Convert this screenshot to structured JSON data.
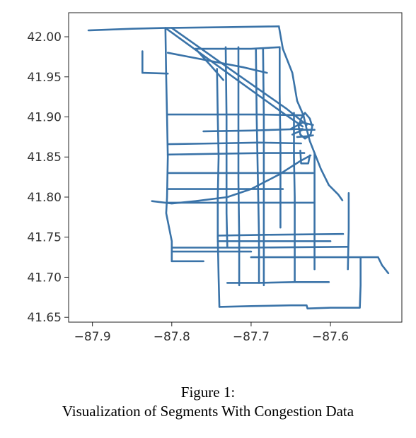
{
  "figure": {
    "caption_line1": "Figure 1:",
    "caption_line2": "Visualization of Segments With Congestion Data"
  },
  "chart_data": {
    "type": "line",
    "title": "",
    "xlabel": "",
    "ylabel": "",
    "xlim": [
      -87.93,
      -87.51
    ],
    "ylim": [
      41.644,
      42.03
    ],
    "xticks": [
      -87.9,
      -87.8,
      -87.7,
      -87.6
    ],
    "xtick_labels": [
      "−87.9",
      "−87.8",
      "−87.7",
      "−87.6"
    ],
    "yticks": [
      41.65,
      41.7,
      41.75,
      41.8,
      41.85,
      41.9,
      41.95,
      42.0
    ],
    "ytick_labels": [
      "41.65",
      "41.70",
      "41.75",
      "41.80",
      "41.85",
      "41.90",
      "41.95",
      "42.00"
    ],
    "grid": false,
    "line_color": "#3a73a8",
    "segments": [
      [
        [
          -87.905,
          42.008
        ],
        [
          -87.85,
          42.01
        ],
        [
          -87.81,
          42.011
        ],
        [
          -87.73,
          42.012
        ],
        [
          -87.665,
          42.013
        ]
      ],
      [
        [
          -87.665,
          42.013
        ],
        [
          -87.66,
          41.985
        ],
        [
          -87.648,
          41.955
        ],
        [
          -87.642,
          41.92
        ],
        [
          -87.634,
          41.902
        ]
      ],
      [
        [
          -87.634,
          41.902
        ],
        [
          -87.63,
          41.885
        ],
        [
          -87.626,
          41.87
        ],
        [
          -87.62,
          41.855
        ],
        [
          -87.612,
          41.835
        ],
        [
          -87.602,
          41.815
        ],
        [
          -87.59,
          41.803
        ],
        [
          -87.585,
          41.796
        ]
      ],
      [
        [
          -87.837,
          41.982
        ],
        [
          -87.837,
          41.955
        ],
        [
          -87.805,
          41.954
        ]
      ],
      [
        [
          -87.808,
          42.011
        ],
        [
          -87.807,
          41.95
        ],
        [
          -87.806,
          41.9
        ],
        [
          -87.805,
          41.85
        ],
        [
          -87.806,
          41.8
        ],
        [
          -87.807,
          41.78
        ],
        [
          -87.804,
          41.765
        ],
        [
          -87.8,
          41.745
        ],
        [
          -87.8,
          41.72
        ]
      ],
      [
        [
          -87.8,
          41.72
        ],
        [
          -87.78,
          41.72
        ],
        [
          -87.76,
          41.72
        ]
      ],
      [
        [
          -87.808,
          42.011
        ],
        [
          -87.73,
          41.955
        ],
        [
          -87.66,
          41.905
        ],
        [
          -87.635,
          41.888
        ]
      ],
      [
        [
          -87.8,
          42.011
        ],
        [
          -87.72,
          41.955
        ],
        [
          -87.655,
          41.91
        ],
        [
          -87.63,
          41.89
        ]
      ],
      [
        [
          -87.805,
          41.98
        ],
        [
          -87.71,
          41.962
        ],
        [
          -87.68,
          41.955
        ]
      ],
      [
        [
          -87.77,
          41.985
        ],
        [
          -87.75,
          41.963
        ],
        [
          -87.735,
          41.946
        ]
      ],
      [
        [
          -87.77,
          41.985
        ],
        [
          -87.7,
          41.985
        ],
        [
          -87.664,
          41.987
        ]
      ],
      [
        [
          -87.805,
          41.903
        ],
        [
          -87.745,
          41.903
        ],
        [
          -87.69,
          41.903
        ],
        [
          -87.634,
          41.902
        ]
      ],
      [
        [
          -87.76,
          41.882
        ],
        [
          -87.7,
          41.883
        ],
        [
          -87.635,
          41.885
        ]
      ],
      [
        [
          -87.805,
          41.866
        ],
        [
          -87.745,
          41.867
        ],
        [
          -87.69,
          41.868
        ],
        [
          -87.637,
          41.867
        ]
      ],
      [
        [
          -87.805,
          41.853
        ],
        [
          -87.745,
          41.854
        ],
        [
          -87.68,
          41.855
        ],
        [
          -87.633,
          41.855
        ]
      ],
      [
        [
          -87.805,
          41.83
        ],
        [
          -87.7,
          41.83
        ],
        [
          -87.622,
          41.83
        ]
      ],
      [
        [
          -87.743,
          41.96
        ],
        [
          -87.742,
          41.9
        ],
        [
          -87.741,
          41.85
        ],
        [
          -87.742,
          41.8
        ],
        [
          -87.742,
          41.75
        ],
        [
          -87.741,
          41.7
        ],
        [
          -87.74,
          41.663
        ]
      ],
      [
        [
          -87.732,
          41.987
        ],
        [
          -87.731,
          41.9
        ],
        [
          -87.731,
          41.85
        ],
        [
          -87.731,
          41.78
        ],
        [
          -87.73,
          41.738
        ]
      ],
      [
        [
          -87.716,
          41.987
        ],
        [
          -87.716,
          41.9
        ],
        [
          -87.716,
          41.82
        ],
        [
          -87.715,
          41.75
        ],
        [
          -87.715,
          41.69
        ]
      ],
      [
        [
          -87.694,
          41.985
        ],
        [
          -87.693,
          41.9
        ],
        [
          -87.692,
          41.85
        ],
        [
          -87.691,
          41.8
        ],
        [
          -87.69,
          41.75
        ],
        [
          -87.69,
          41.693
        ]
      ],
      [
        [
          -87.685,
          41.985
        ],
        [
          -87.684,
          41.9
        ],
        [
          -87.684,
          41.83
        ],
        [
          -87.684,
          41.75
        ],
        [
          -87.684,
          41.69
        ]
      ],
      [
        [
          -87.664,
          41.987
        ],
        [
          -87.664,
          41.93
        ],
        [
          -87.663,
          41.86
        ],
        [
          -87.663,
          41.8
        ],
        [
          -87.663,
          41.762
        ]
      ],
      [
        [
          -87.646,
          41.905
        ],
        [
          -87.646,
          41.85
        ],
        [
          -87.645,
          41.8
        ],
        [
          -87.645,
          41.75
        ],
        [
          -87.645,
          41.695
        ]
      ],
      [
        [
          -87.62,
          41.855
        ],
        [
          -87.62,
          41.8
        ],
        [
          -87.62,
          41.75
        ],
        [
          -87.62,
          41.71
        ]
      ],
      [
        [
          -87.577,
          41.805
        ],
        [
          -87.577,
          41.76
        ],
        [
          -87.578,
          41.71
        ]
      ],
      [
        [
          -87.825,
          41.795
        ],
        [
          -87.8,
          41.792
        ],
        [
          -87.77,
          41.795
        ],
        [
          -87.73,
          41.8
        ],
        [
          -87.7,
          41.81
        ],
        [
          -87.665,
          41.828
        ],
        [
          -87.638,
          41.845
        ],
        [
          -87.625,
          41.852
        ]
      ],
      [
        [
          -87.805,
          41.793
        ],
        [
          -87.75,
          41.793
        ],
        [
          -87.7,
          41.793
        ],
        [
          -87.645,
          41.793
        ],
        [
          -87.62,
          41.793
        ]
      ],
      [
        [
          -87.805,
          41.81
        ],
        [
          -87.7,
          41.81
        ],
        [
          -87.66,
          41.81
        ]
      ],
      [
        [
          -87.742,
          41.752
        ],
        [
          -87.68,
          41.753
        ],
        [
          -87.584,
          41.754
        ]
      ],
      [
        [
          -87.742,
          41.745
        ],
        [
          -87.68,
          41.745
        ],
        [
          -87.6,
          41.745
        ]
      ],
      [
        [
          -87.8,
          41.737
        ],
        [
          -87.7,
          41.737
        ],
        [
          -87.578,
          41.738
        ]
      ],
      [
        [
          -87.8,
          41.732
        ],
        [
          -87.75,
          41.732
        ],
        [
          -87.7,
          41.732
        ]
      ],
      [
        [
          -87.7,
          41.725
        ],
        [
          -87.6,
          41.725
        ],
        [
          -87.54,
          41.725
        ],
        [
          -87.535,
          41.715
        ],
        [
          -87.527,
          41.705
        ]
      ],
      [
        [
          -87.73,
          41.693
        ],
        [
          -87.69,
          41.693
        ],
        [
          -87.645,
          41.694
        ],
        [
          -87.602,
          41.694
        ]
      ],
      [
        [
          -87.74,
          41.663
        ],
        [
          -87.7,
          41.664
        ],
        [
          -87.65,
          41.665
        ],
        [
          -87.63,
          41.665
        ],
        [
          -87.629,
          41.661
        ],
        [
          -87.6,
          41.662
        ],
        [
          -87.563,
          41.662
        ],
        [
          -87.562,
          41.69
        ],
        [
          -87.562,
          41.724
        ]
      ],
      [
        [
          -87.632,
          41.905
        ],
        [
          -87.626,
          41.898
        ],
        [
          -87.623,
          41.888
        ],
        [
          -87.625,
          41.878
        ],
        [
          -87.632,
          41.873
        ],
        [
          -87.638,
          41.878
        ],
        [
          -87.64,
          41.888
        ],
        [
          -87.637,
          41.898
        ],
        [
          -87.632,
          41.905
        ]
      ],
      [
        [
          -87.65,
          41.885
        ],
        [
          -87.635,
          41.893
        ],
        [
          -87.622,
          41.89
        ]
      ],
      [
        [
          -87.648,
          41.878
        ],
        [
          -87.635,
          41.884
        ],
        [
          -87.62,
          41.884
        ]
      ],
      [
        [
          -87.642,
          41.875
        ],
        [
          -87.628,
          41.876
        ],
        [
          -87.622,
          41.877
        ]
      ],
      [
        [
          -87.638,
          41.858
        ],
        [
          -87.637,
          41.842
        ],
        [
          -87.628,
          41.842
        ],
        [
          -87.626,
          41.852
        ]
      ]
    ]
  }
}
